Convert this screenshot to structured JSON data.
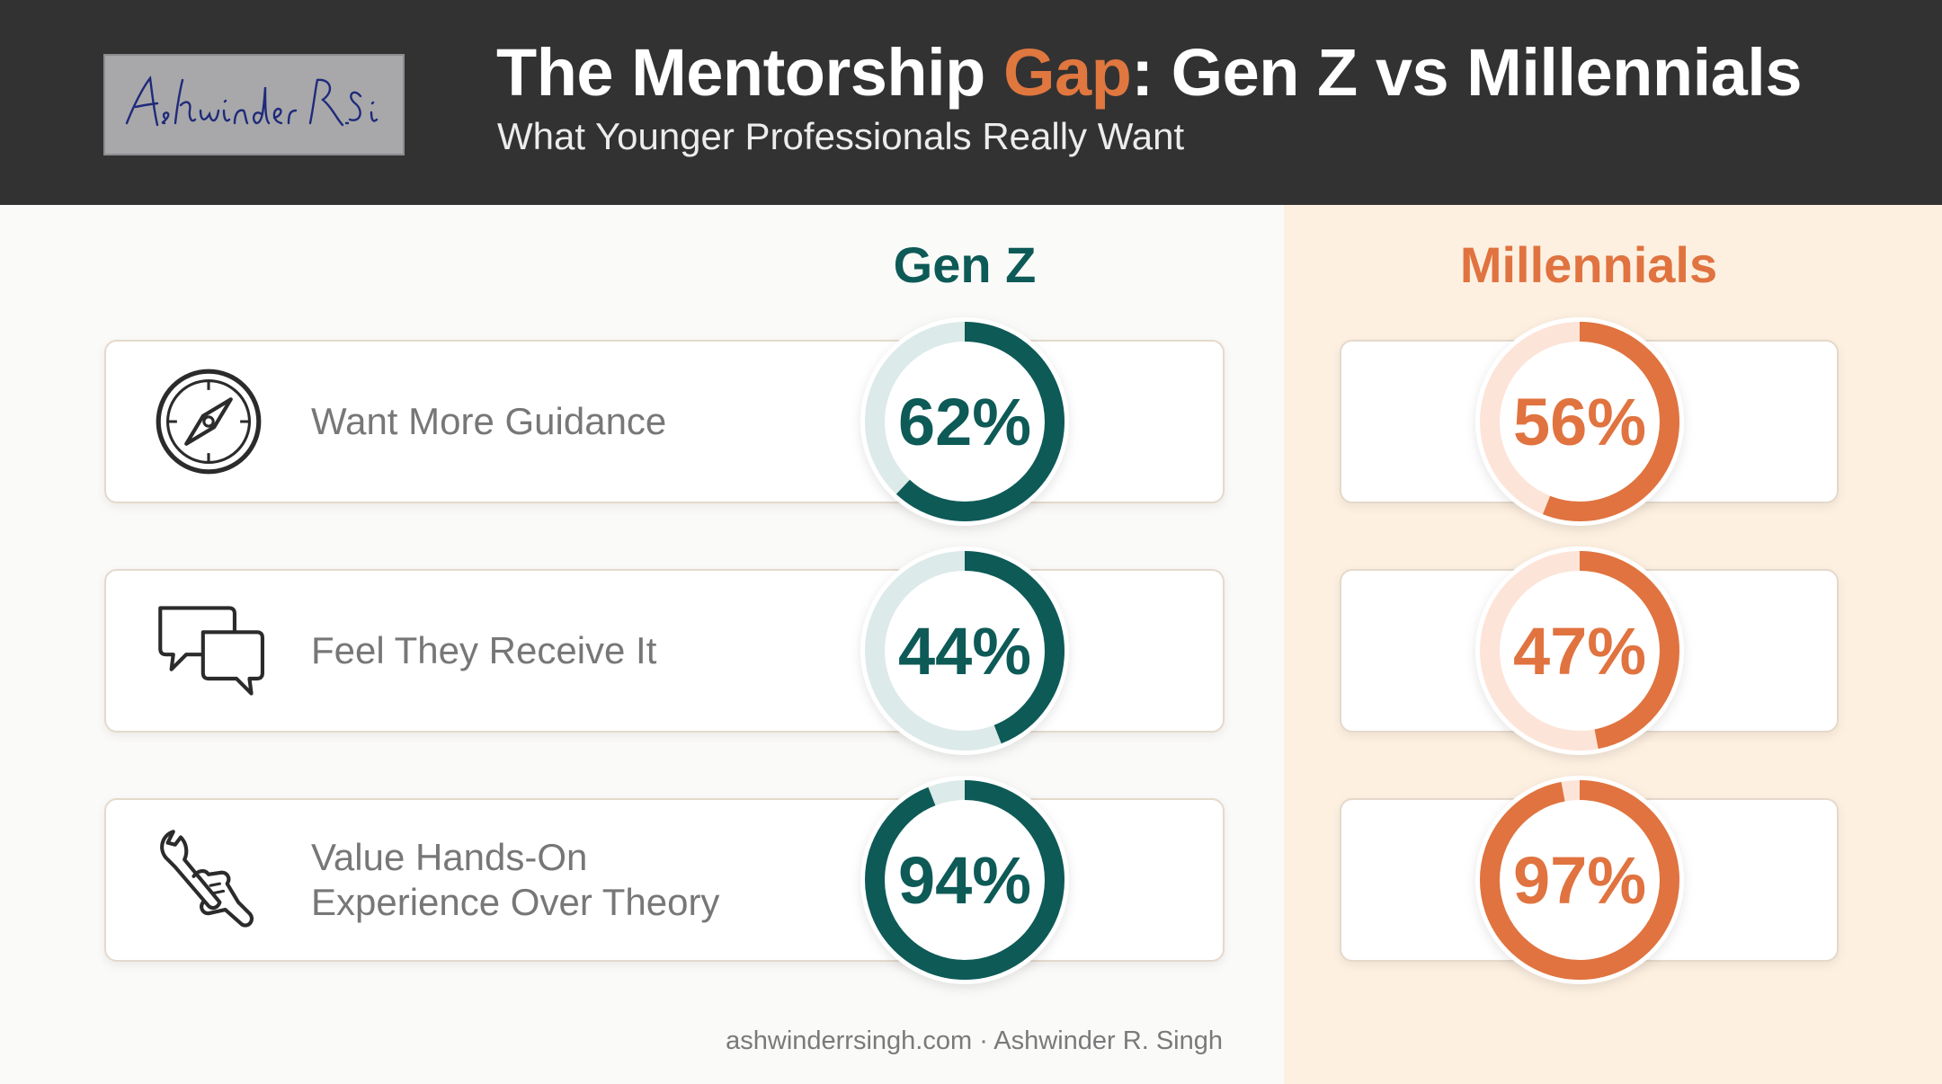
{
  "header": {
    "signature": "Ashwinder R. Singh",
    "title_part1": "The Mentorship ",
    "title_accent": "Gap",
    "title_part2": ": Gen Z vs Millennials",
    "subtitle": "What Younger Professionals Really Want"
  },
  "columns": {
    "genz": "Gen Z",
    "millennials": "Millennials"
  },
  "rows": [
    {
      "label": "Want More Guidance",
      "icon": "compass-icon"
    },
    {
      "label": "Feel They Receive It",
      "icon": "chat-bubbles-icon"
    },
    {
      "label": "Value Hands-On\nExperience Over Theory",
      "icon": "wrench-hand-icon"
    }
  ],
  "chart_data": {
    "type": "donut",
    "categories": [
      "Want More Guidance",
      "Feel They Receive It",
      "Value Hands-On Experience Over Theory"
    ],
    "series": [
      {
        "name": "Gen Z",
        "values": [
          62,
          44,
          94
        ],
        "labels": [
          "62%",
          "44%",
          "94%"
        ],
        "color": "#0d5a57",
        "track": "#dceae9"
      },
      {
        "name": "Millennials",
        "values": [
          56,
          47,
          97
        ],
        "labels": [
          "56%",
          "47%",
          "97%"
        ],
        "color": "#e0733f",
        "track": "#fde4d8"
      }
    ],
    "unit": "%"
  },
  "colors": {
    "header_bg": "#323232",
    "accent": "#e0773f",
    "teal": "#0d5a57",
    "orange": "#e0733f",
    "panel": "#fdf0e1"
  },
  "footer": "ashwinderrsingh.com · Ashwinder R. Singh"
}
